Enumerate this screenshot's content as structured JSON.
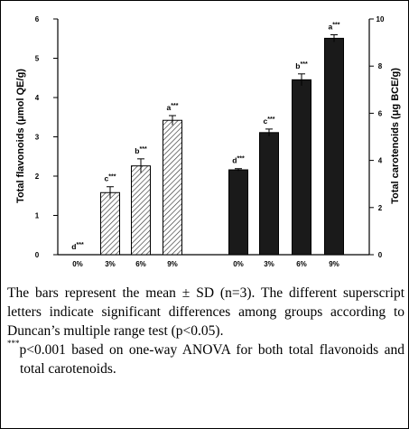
{
  "chart_data": [
    {
      "type": "bar",
      "categories": [
        "0%",
        "3%",
        "6%",
        "9%"
      ],
      "values": [
        0.0,
        1.58,
        2.26,
        3.42
      ],
      "errors": [
        0.0,
        0.15,
        0.18,
        0.12
      ],
      "significance": [
        "d***",
        "c***",
        "b***",
        "a***"
      ],
      "fill": "hatched",
      "ylabel": "Total flavonoids (μmol QE/g)",
      "ylim": [
        0,
        6
      ],
      "yticks": [
        0,
        1,
        2,
        3,
        4,
        5,
        6
      ],
      "axis": "left"
    },
    {
      "type": "bar",
      "categories": [
        "0%",
        "3%",
        "6%",
        "9%"
      ],
      "values": [
        3.6,
        5.18,
        7.42,
        9.18
      ],
      "errors": [
        0.05,
        0.15,
        0.25,
        0.15
      ],
      "significance": [
        "d***",
        "c***",
        "b***",
        "a***"
      ],
      "fill": "#1a1a1a",
      "ylabel": "Total carotenoids (μg BCE/g)",
      "ylim": [
        0,
        10
      ],
      "yticks": [
        0,
        2,
        4,
        6,
        8,
        10
      ],
      "axis": "right"
    }
  ],
  "caption": {
    "main": "The bars represent the mean ± SD (n=3). The different superscript letters indicate significant differences among groups according to Duncan’s multiple range test (p<0.05).",
    "note_marker": "***",
    "note": "p<0.001 based on one-way ANOVA for both total flavonoids and total carotenoids."
  }
}
